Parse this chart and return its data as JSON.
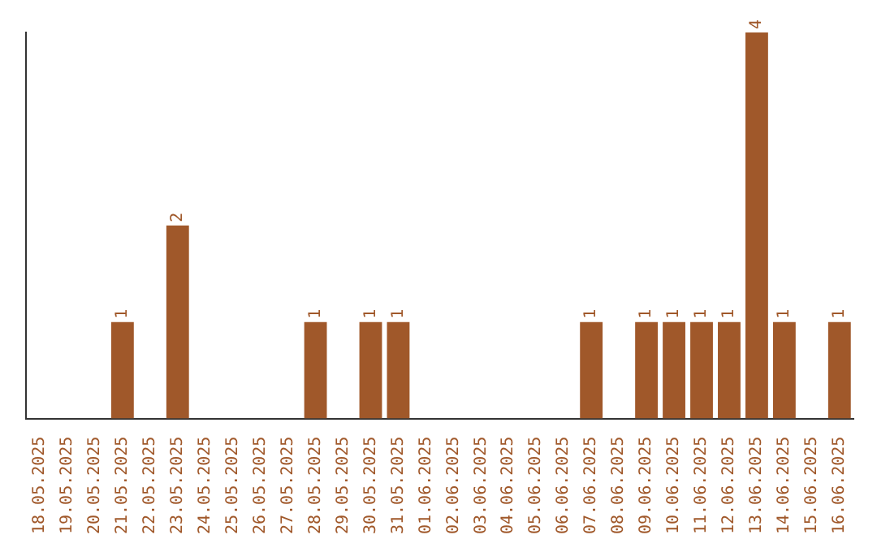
{
  "chart_data": {
    "type": "bar",
    "categories": [
      "18.05.2025",
      "19.05.2025",
      "20.05.2025",
      "21.05.2025",
      "22.05.2025",
      "23.05.2025",
      "24.05.2025",
      "25.05.2025",
      "26.05.2025",
      "27.05.2025",
      "28.05.2025",
      "29.05.2025",
      "30.05.2025",
      "31.05.2025",
      "01.06.2025",
      "02.06.2025",
      "03.06.2025",
      "04.06.2025",
      "05.06.2025",
      "06.06.2025",
      "07.06.2025",
      "08.06.2025",
      "09.06.2025",
      "10.06.2025",
      "11.06.2025",
      "12.06.2025",
      "13.06.2025",
      "14.06.2025",
      "15.06.2025",
      "16.06.2025"
    ],
    "values": [
      0,
      0,
      0,
      1,
      0,
      2,
      0,
      0,
      0,
      0,
      1,
      0,
      1,
      1,
      0,
      0,
      0,
      0,
      0,
      0,
      1,
      0,
      1,
      1,
      1,
      1,
      4,
      1,
      0,
      1
    ],
    "value_labels": [
      null,
      null,
      null,
      "1",
      null,
      "2",
      null,
      null,
      null,
      null,
      "1",
      null,
      "1",
      "1",
      null,
      null,
      null,
      null,
      null,
      null,
      "1",
      null,
      "1",
      "1",
      "1",
      "1",
      "4",
      "1",
      null,
      "1"
    ],
    "color": "#a0582a",
    "grid": false,
    "legend": false,
    "tick_labels": "x"
  }
}
